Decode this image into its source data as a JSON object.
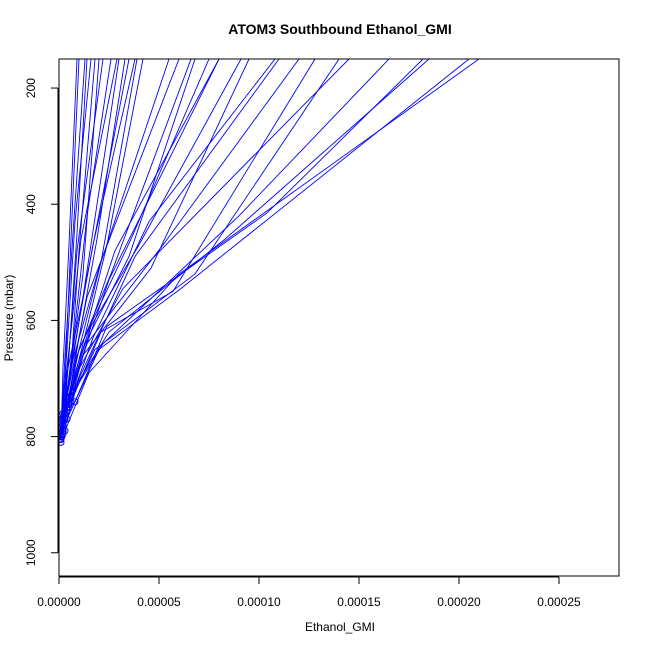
{
  "chart_data": {
    "type": "line",
    "title": "ATOM3 Southbound Ethanol_GMI",
    "xlabel": "Ethanol_GMI",
    "ylabel": "Pressure (mbar)",
    "xlim": [
      0,
      0.00028
    ],
    "ylim": [
      1040,
      150
    ],
    "y_reversed": true,
    "x_ticks": [
      0,
      5e-05,
      0.0001,
      0.00015,
      0.0002,
      0.00025
    ],
    "x_tick_labels": [
      "0.00000",
      "0.00005",
      "0.00010",
      "0.00015",
      "0.00020",
      "0.00025"
    ],
    "y_ticks": [
      200,
      400,
      600,
      800,
      1000
    ],
    "y_tick_labels": [
      "200",
      "400",
      "600",
      "800",
      "1000"
    ],
    "grid": false,
    "series_color": "#0000ff",
    "series": [
      {
        "x": [
          5e-07,
          3.5e-06,
          1.4e-05,
          6e-05
        ],
        "y": [
          805,
          740,
          560,
          150
        ]
      },
      {
        "x": [
          1e-06,
          6e-06,
          2.5e-05,
          8e-05
        ],
        "y": [
          800,
          720,
          530,
          150
        ]
      },
      {
        "x": [
          2e-06,
          1e-05,
          3.8e-05,
          0.00011
        ],
        "y": [
          795,
          700,
          490,
          150
        ]
      },
      {
        "x": [
          3e-06,
          1.5e-05,
          6e-05,
          0.00021
        ],
        "y": [
          790,
          690,
          520,
          150
        ]
      },
      {
        "x": [
          2e-06,
          9e-06,
          3.2e-05,
          0.000145
        ],
        "y": [
          780,
          690,
          545,
          150
        ]
      },
      {
        "x": [
          4e-06,
          2e-05,
          6.1e-05,
          0.000205
        ],
        "y": [
          770,
          650,
          545,
          150
        ]
      },
      {
        "x": [
          1.5e-06,
          8e-06,
          2.8e-05,
          8e-05
        ],
        "y": [
          800,
          690,
          480,
          150
        ]
      },
      {
        "x": [
          1e-06,
          4.5e-06,
          1.2e-05,
          3.5e-05
        ],
        "y": [
          800,
          720,
          560,
          150
        ]
      },
      {
        "x": [
          1e-06,
          4e-06,
          9e-06,
          2.2e-05
        ],
        "y": [
          810,
          700,
          480,
          150
        ]
      },
      {
        "x": [
          1e-06,
          5e-06,
          1.1e-05,
          2.9e-05
        ],
        "y": [
          770,
          650,
          460,
          150
        ]
      },
      {
        "x": [
          2e-06,
          8e-06,
          1.7e-05,
          3.8e-05
        ],
        "y": [
          760,
          640,
          470,
          150
        ]
      },
      {
        "x": [
          1e-06,
          3e-06,
          7e-06,
          1.3e-05
        ],
        "y": [
          800,
          660,
          450,
          150
        ]
      },
      {
        "x": [
          1e-06,
          4e-06,
          8e-06,
          1.6e-05
        ],
        "y": [
          790,
          650,
          430,
          150
        ]
      },
      {
        "x": [
          2e-06,
          7e-06,
          1.4e-05,
          2.6e-05
        ],
        "y": [
          780,
          640,
          420,
          150
        ]
      },
      {
        "x": [
          3e-06,
          1e-05,
          1.9e-05,
          3.3e-05
        ],
        "y": [
          770,
          630,
          460,
          150
        ]
      },
      {
        "x": [
          1e-06,
          3e-06,
          6e-06,
          1e-05
        ],
        "y": [
          800,
          700,
          460,
          150
        ]
      },
      {
        "x": [
          2e-06,
          6e-06,
          1e-05,
          1.8e-05
        ],
        "y": [
          790,
          680,
          480,
          150
        ]
      },
      {
        "x": [
          4e-06,
          1.2e-05,
          2.4e-05,
          4.2e-05
        ],
        "y": [
          750,
          640,
          470,
          150
        ]
      },
      {
        "x": [
          1e-06,
          2e-06,
          5e-06,
          9e-06
        ],
        "y": [
          805,
          680,
          470,
          150
        ]
      },
      {
        "x": [
          2e-06,
          5e-06,
          9e-06,
          1.4e-05
        ],
        "y": [
          790,
          660,
          450,
          150
        ]
      },
      {
        "x": [
          3e-06,
          7e-06,
          1.2e-05,
          2e-05
        ],
        "y": [
          760,
          650,
          520,
          150
        ]
      },
      {
        "x": [
          5e-06,
          1.6e-05,
          4e-05,
          9.1e-05
        ],
        "y": [
          750,
          610,
          470,
          150
        ]
      },
      {
        "x": [
          2e-06,
          6e-06,
          2e-05,
          5.5e-05
        ],
        "y": [
          770,
          680,
          510,
          150
        ]
      },
      {
        "x": [
          6e-06,
          2.2e-05,
          9e-05,
          0.000165
        ],
        "y": [
          730,
          640,
          420,
          150
        ]
      },
      {
        "x": [
          3e-06,
          1.4e-05,
          5.2e-05,
          0.00012
        ],
        "y": [
          760,
          640,
          470,
          150
        ]
      },
      {
        "x": [
          2e-06,
          9e-06,
          2.6e-05,
          6.6e-05
        ],
        "y": [
          780,
          660,
          520,
          150
        ]
      },
      {
        "x": [
          7e-06,
          2.5e-05,
          8.3e-05,
          0.000185
        ],
        "y": [
          720,
          620,
          460,
          150
        ]
      },
      {
        "x": [
          4e-06,
          1.8e-05,
          6.8e-05,
          0.00014
        ],
        "y": [
          750,
          650,
          520,
          150
        ]
      },
      {
        "x": [
          8e-06,
          2.4e-05,
          0.000104,
          0.000182
        ],
        "y": [
          740,
          610,
          415,
          150
        ]
      },
      {
        "x": [
          2e-06,
          1.2e-05,
          4.6e-05,
          9.5e-05
        ],
        "y": [
          770,
          660,
          510,
          150
        ]
      },
      {
        "x": [
          3e-06,
          1.3e-05,
          3.5e-05,
          6.8e-05
        ],
        "y": [
          760,
          640,
          490,
          150
        ]
      },
      {
        "x": [
          1e-06,
          4e-06,
          1.2e-05,
          3e-05
        ],
        "y": [
          790,
          690,
          560,
          150
        ]
      },
      {
        "x": [
          5e-06,
          1.7e-05,
          4.5e-05,
          0.000108
        ],
        "y": [
          745,
          630,
          430,
          150
        ]
      },
      {
        "x": [
          2e-06,
          1e-05,
          3.6e-05,
          7.5e-05
        ],
        "y": [
          780,
          650,
          460,
          150
        ]
      },
      {
        "x": [
          6e-06,
          2.1e-05,
          5.7e-05,
          0.000128
        ],
        "y": [
          740,
          620,
          550,
          150
        ]
      },
      {
        "x": [
          3e-06,
          1e-05,
          2.1e-05,
          3.9e-05
        ],
        "y": [
          760,
          650,
          500,
          150
        ]
      }
    ]
  }
}
